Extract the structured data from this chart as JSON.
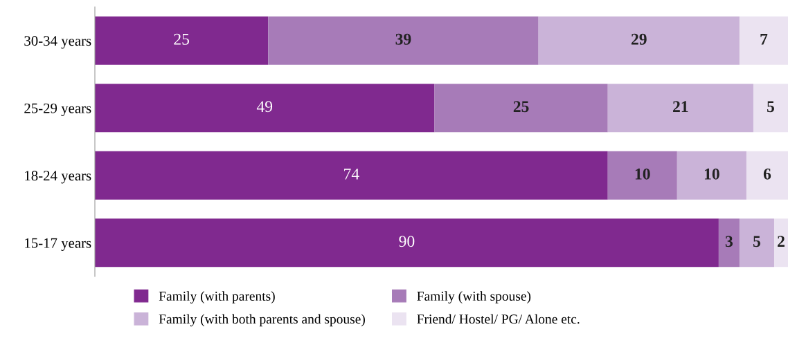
{
  "chart_data": {
    "type": "bar",
    "orientation": "horizontal",
    "stacked": true,
    "categories": [
      "30-34 years",
      "25-29 years",
      "18-24 years",
      "15-17 years"
    ],
    "series": [
      {
        "name": "Family (with parents)",
        "color": "#80298f",
        "values": [
          25,
          49,
          74,
          90
        ]
      },
      {
        "name": "Family (with spouse)",
        "color": "#a77bb8",
        "values": [
          39,
          25,
          10,
          3
        ]
      },
      {
        "name": "Family (with both parents and spouse)",
        "color": "#cab3d8",
        "values": [
          29,
          21,
          10,
          5
        ]
      },
      {
        "name": "Friend/ Hostel/ PG/ Alone etc.",
        "color": "#ebe3f1",
        "values": [
          7,
          5,
          6,
          2
        ]
      }
    ],
    "xlim": [
      0,
      100
    ],
    "tick_labels": "y",
    "data_labels": true,
    "legend": "bottom",
    "grid": false
  }
}
